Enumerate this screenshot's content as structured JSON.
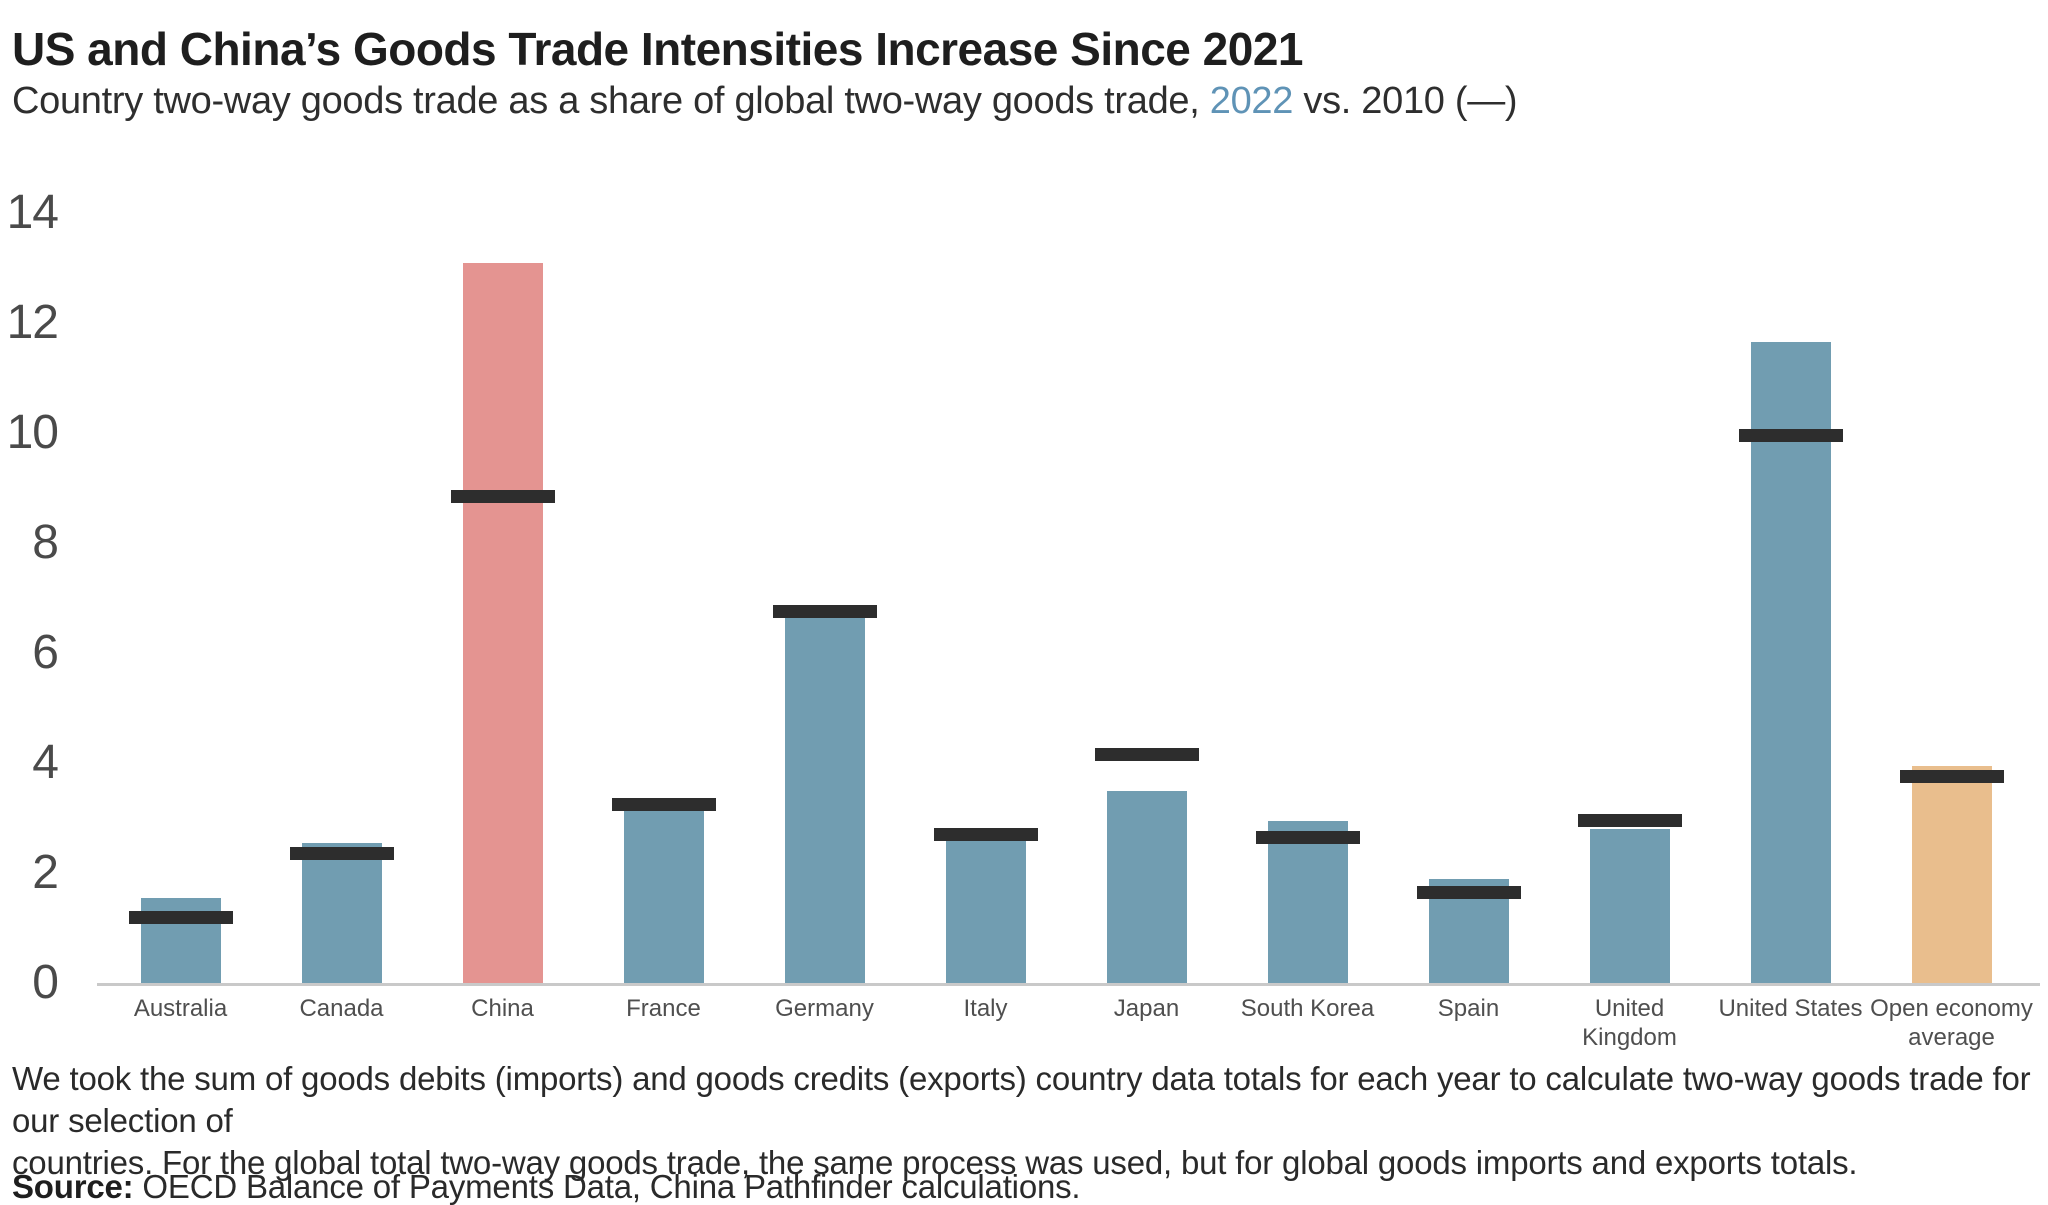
{
  "header": {
    "title": "US and China’s Goods Trade Intensities Increase Since 2021",
    "subtitle_prefix": "Country two-way goods trade as a share of global two-way goods trade, ",
    "subtitle_year_highlight": "2022",
    "subtitle_suffix": " vs. 2010 (—)"
  },
  "chart_data": {
    "type": "bar",
    "title": "US and China’s Goods Trade Intensities Increase Since 2021",
    "subtitle": "Country two-way goods trade as a share of global two-way goods trade, 2022 vs. 2010 (—)",
    "xlabel": "",
    "ylabel": "",
    "ylim": [
      0,
      14
    ],
    "yticks": [
      0,
      2,
      4,
      6,
      8,
      10,
      12,
      14
    ],
    "grid": false,
    "legend_position": "in-subtitle",
    "categories": [
      "Australia",
      "Canada",
      "China",
      "France",
      "Germany",
      "Italy",
      "Japan",
      "South Korea",
      "Spain",
      "United Kingdom",
      "United States",
      "Open economy average"
    ],
    "series": [
      {
        "name": "2022",
        "style": "bar",
        "values": [
          1.55,
          2.55,
          13.1,
          3.15,
          6.65,
          2.6,
          3.5,
          2.95,
          1.9,
          2.8,
          11.65,
          3.95
        ]
      },
      {
        "name": "2010",
        "style": "dash-marker",
        "values": [
          1.2,
          2.35,
          8.85,
          3.25,
          6.75,
          2.7,
          4.15,
          2.65,
          1.65,
          2.95,
          9.95,
          3.75
        ]
      }
    ],
    "colors": {
      "bar_default": "#719db1",
      "bar_china": "#e49491",
      "bar_open_economy": "#e9be8d",
      "marker_2010": "#2d2d2d",
      "axis_line": "#c9c9c9",
      "year_highlight": "#5f93b6"
    },
    "highlight_colors": {
      "China": "#e49491",
      "Open economy average": "#e9be8d"
    }
  },
  "footnote": {
    "line1": "We took the sum of goods debits (imports) and goods credits (exports) country data totals for each year to calculate two-way goods trade for our selection of",
    "line2": "countries. For the global total two-way goods trade, the same process was used, but for global goods imports and exports totals."
  },
  "source": {
    "label": "Source:",
    "text": " OECD Balance of Payments Data, China Pathfinder calculations."
  }
}
